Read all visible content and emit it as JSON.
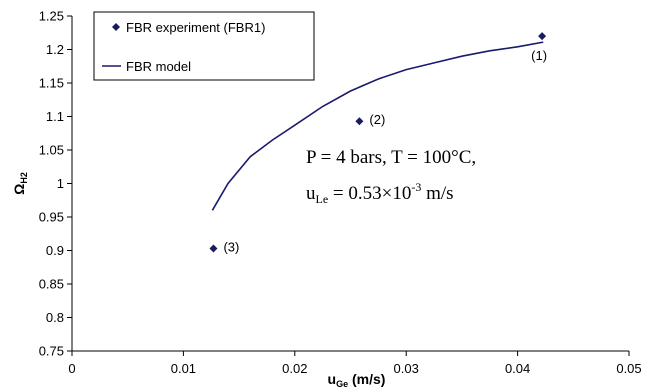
{
  "chart_data": {
    "type": "scatter",
    "x_axis": {
      "label_main": "u",
      "label_sub": "Ge",
      "label_unit": " (m/s)",
      "range": [
        0,
        0.05
      ],
      "ticks": [
        0,
        0.01,
        0.02,
        0.03,
        0.04,
        0.05
      ],
      "tick_labels": [
        "0",
        "0.01",
        "0.02",
        "0.03",
        "0.04",
        "0.05"
      ]
    },
    "y_axis": {
      "label_main": "Ω",
      "label_sub": "H2",
      "range": [
        0.75,
        1.25
      ],
      "ticks": [
        0.75,
        0.8,
        0.85,
        0.9,
        0.95,
        1.0,
        1.05,
        1.1,
        1.15,
        1.2,
        1.25
      ],
      "tick_labels": [
        "0.75",
        "0.8",
        "0.85",
        "0.9",
        "0.95",
        "1",
        "1.05",
        "1.1",
        "1.15",
        "1.2",
        "1.25"
      ]
    },
    "grid": false,
    "legend_position": "top-left",
    "series": [
      {
        "name": "FBR experiment (FBR1)",
        "kind": "markers",
        "marker": "diamond",
        "color": "#1a1a5e",
        "points": [
          {
            "x": 0.0127,
            "y": 0.903,
            "label": "(3)"
          },
          {
            "x": 0.0258,
            "y": 1.093,
            "label": "(2)"
          },
          {
            "x": 0.0422,
            "y": 1.22,
            "label": "(1)"
          }
        ]
      },
      {
        "name": "FBR model",
        "kind": "line",
        "color": "#1a1a6e",
        "points": [
          {
            "x": 0.0126,
            "y": 0.96
          },
          {
            "x": 0.014,
            "y": 1.0
          },
          {
            "x": 0.016,
            "y": 1.04
          },
          {
            "x": 0.018,
            "y": 1.065
          },
          {
            "x": 0.02,
            "y": 1.087
          },
          {
            "x": 0.0225,
            "y": 1.115
          },
          {
            "x": 0.025,
            "y": 1.138
          },
          {
            "x": 0.0275,
            "y": 1.156
          },
          {
            "x": 0.03,
            "y": 1.17
          },
          {
            "x": 0.0325,
            "y": 1.18
          },
          {
            "x": 0.035,
            "y": 1.19
          },
          {
            "x": 0.0375,
            "y": 1.198
          },
          {
            "x": 0.04,
            "y": 1.204
          },
          {
            "x": 0.0423,
            "y": 1.211
          }
        ]
      }
    ],
    "annotation": {
      "line1": "P = 4 bars, T = 100°C,",
      "line2_main": "u",
      "line2_sub": "Le",
      "line2_mid": " = 0.53×10",
      "line2_sup": "-3",
      "line2_end": " m/s"
    }
  }
}
